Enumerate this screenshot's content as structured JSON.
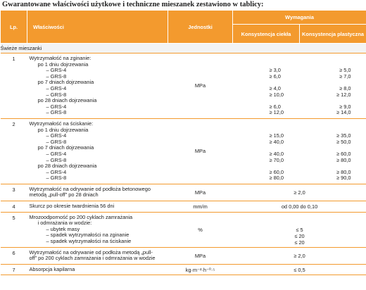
{
  "title": "Gwarantowane właściwości użytkowe i techniczne mieszanek zestawiono w tablicy:",
  "header": {
    "lp": "Lp.",
    "property": "Właściwości",
    "unit": "Jednostki",
    "requirements": "Wymagania",
    "consistency_liquid": "Konsystencja ciekła",
    "consistency_plastic": "Konsystencja plastyczna"
  },
  "section": "Świeże mieszanki",
  "rows": [
    {
      "no": "1",
      "lines": [
        "Wytrzymałość na zginanie:",
        "po 1 dniu dojrzewania",
        "– GRS-4",
        "– GRS-8",
        "po 7 dniach dojrzewania",
        "– GRS-4",
        "– GRS-8",
        "po 28 dniach dojrzewania",
        "– GRS-4",
        "– GRS-8"
      ],
      "unit": "MPa",
      "v1": [
        "",
        "",
        "≥ 3,0",
        "≥ 6,0",
        "",
        "≥ 4,0",
        "≥ 10,0",
        "",
        "≥ 6,0",
        "≥ 12,0"
      ],
      "v2": [
        "",
        "",
        "≥ 5,0",
        "≥ 7,0",
        "",
        "≥ 8,0",
        "≥ 12,0",
        "",
        "≥ 9,0",
        "≥ 14,0"
      ]
    },
    {
      "no": "2",
      "lines": [
        "Wytrzymałość na ściskanie:",
        "po 1 dniu dojrzewania",
        "– GRS-4",
        "– GRS-8",
        "po 7 dniach dojrzewania",
        "– GRS-4",
        "– GRS-8",
        "po 28 dniach dojrzewania",
        "– GRS-4",
        "– GRS-8"
      ],
      "unit": "MPa",
      "v1": [
        "",
        "",
        "≥ 15,0",
        "≥ 40,0",
        "",
        "≥ 40,0",
        "≥ 70,0",
        "",
        "≥ 60,0",
        "≥ 80,0"
      ],
      "v2": [
        "",
        "",
        "≥ 35,0",
        "≥ 50,0",
        "",
        "≥ 60,0",
        "≥ 80,0",
        "",
        "≥ 80,0",
        "≥ 90,0"
      ]
    },
    {
      "no": "3",
      "lines": [
        "Wytrzymałość na odrywanie od podłoża betonowego",
        "metodą „pull-off” po 28 dniach"
      ],
      "unit": "MPa",
      "span": "≥ 2,0"
    },
    {
      "no": "4",
      "lines": [
        "Skurcz po okresie twardnienia 56 dni"
      ],
      "unit": "mm/m",
      "span": "od 0,00 do 0,10"
    },
    {
      "no": "5",
      "lines": [
        "Mrozoodporność po 200 cyklach zamrażania",
        "i odmrażania w wodzie:",
        "– ubytek masy",
        "– spadek wytrzymałości na zginanie",
        "– spadek wytrzymałości na ściskanie"
      ],
      "unit": "%",
      "span_lines": [
        "",
        "",
        "≤ 5",
        "≤ 20",
        "≤ 20"
      ]
    },
    {
      "no": "6",
      "lines": [
        "Wytrzymałość na odrywanie od podłoża metodą „pull-",
        "off” po 200 cyklach zamrażania i odmrażania w wodzie"
      ],
      "unit": "MPa",
      "span": "≥ 2,0"
    },
    {
      "no": "7",
      "lines": [
        "Absorpcja kapilarna"
      ],
      "unit": "kg·m⁻²·h⁻⁰·⁵",
      "span": "≤ 0,5"
    }
  ]
}
